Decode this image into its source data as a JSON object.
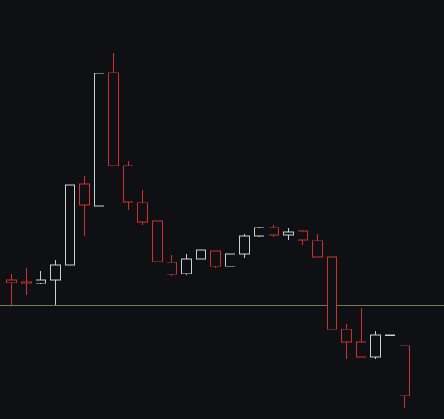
{
  "chart_data": {
    "type": "candlestick",
    "categories": [
      null,
      null,
      null,
      null,
      null,
      null,
      null,
      null,
      null,
      null,
      null,
      null,
      null,
      null,
      null,
      null,
      null,
      null,
      null,
      null,
      null,
      null,
      null,
      null,
      null,
      null,
      null,
      null
    ],
    "open": [
      172,
      170,
      168,
      172,
      191,
      291,
      264,
      429,
      314,
      268,
      245,
      194,
      180,
      198,
      208,
      189,
      204,
      227,
      237,
      228,
      233,
      221,
      201,
      111,
      95,
      77,
      104,
      91
    ],
    "high": [
      179,
      187,
      183,
      197,
      315,
      301,
      513,
      453,
      320,
      284,
      245,
      203,
      204,
      213,
      208,
      207,
      229,
      238,
      240,
      237,
      234,
      229,
      205,
      118,
      137,
      109,
      104,
      91
    ],
    "low": [
      141,
      154,
      167,
      141,
      191,
      227,
      221,
      314,
      259,
      240,
      195,
      177,
      178,
      188,
      187,
      189,
      199,
      226,
      226,
      222,
      215,
      201,
      105,
      74,
      77,
      74,
      104,
      14
    ],
    "close": [
      169,
      168,
      172,
      191,
      290,
      265,
      428,
      314,
      269,
      244,
      195,
      179,
      198,
      209,
      189,
      204,
      227,
      237,
      228,
      232,
      222,
      201,
      111,
      95,
      77,
      104,
      104,
      29
    ],
    "up_color": "#c8d0d0",
    "down_color": "#d0302c",
    "ylim": [
      0,
      519
    ],
    "hlines": [
      141,
      29
    ],
    "hline_color": "#7a7650"
  }
}
